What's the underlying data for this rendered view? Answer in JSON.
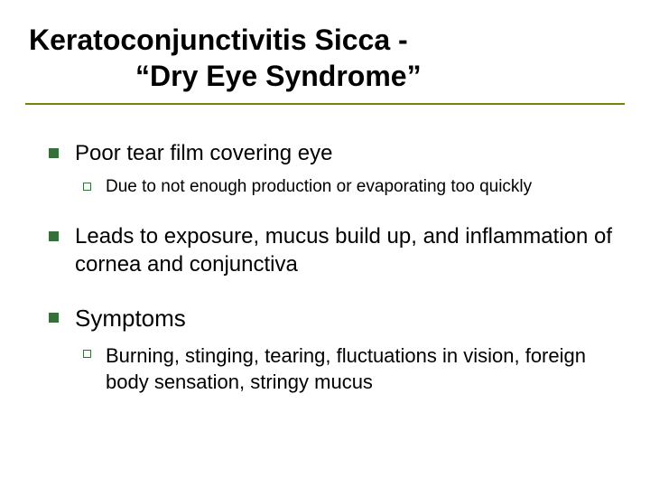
{
  "colors": {
    "title_underline": "#808000",
    "bullet_fill": "#376f3b",
    "bullet_outline": "#376f3b",
    "text": "#000000",
    "background": "#ffffff"
  },
  "typography": {
    "title_fontsize_pt": 32,
    "title_weight": "bold",
    "l1_fontsize_pt": 24,
    "l1_large_fontsize_pt": 26,
    "l2_fontsize_pt": 19,
    "l2_large_fontsize_pt": 22,
    "font_family": "Arial"
  },
  "title": {
    "line1": "Keratoconjunctivitis Sicca -",
    "line2": "“Dry Eye Syndrome”"
  },
  "bullets": {
    "b1": {
      "level": 1,
      "text": "Poor tear film covering eye"
    },
    "b1a": {
      "level": 2,
      "text": "Due to not enough production or evaporating too quickly"
    },
    "b2": {
      "level": 1,
      "text": "Leads to exposure, mucus build up, and inflammation of cornea and conjunctiva"
    },
    "b3": {
      "level": 1,
      "text": "Symptoms"
    },
    "b3a": {
      "level": 2,
      "text": "Burning, stinging, tearing, fluctuations in vision, foreign body sensation, stringy mucus"
    }
  }
}
